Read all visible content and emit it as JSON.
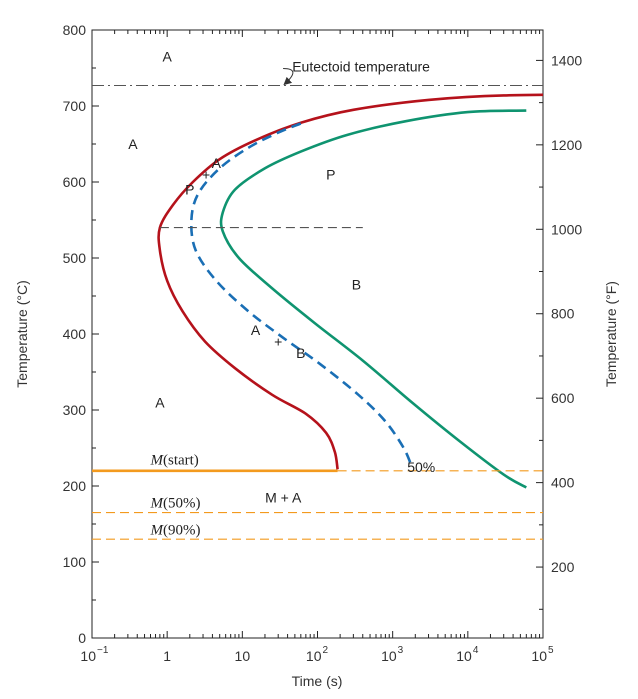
{
  "chart_data": {
    "type": "line",
    "title": "",
    "xlabel": "Time (s)",
    "ylabel": "Temperature (°C)",
    "y2label": "Temperature (°F)",
    "xscale": "log",
    "xlim": [
      0.1,
      100000
    ],
    "ylim": [
      0,
      800
    ],
    "y2lim": [
      32,
      1472
    ],
    "grid": false,
    "x_ticks": [
      {
        "value": 0.1,
        "base": "10",
        "exp": "−1"
      },
      {
        "value": 1,
        "base": "1",
        "exp": ""
      },
      {
        "value": 10,
        "base": "10",
        "exp": ""
      },
      {
        "value": 100,
        "base": "10",
        "exp": "2"
      },
      {
        "value": 1000,
        "base": "10",
        "exp": "3"
      },
      {
        "value": 10000,
        "base": "10",
        "exp": "4"
      },
      {
        "value": 100000,
        "base": "10",
        "exp": "5"
      }
    ],
    "y_ticks": [
      "0",
      "100",
      "200",
      "300",
      "400",
      "500",
      "600",
      "700",
      "800"
    ],
    "y2_ticks": [
      "200",
      "400",
      "600",
      "800",
      "1000",
      "1200",
      "1400"
    ],
    "series": [
      {
        "key": "start",
        "color": "#b5121b",
        "style": "solid",
        "points": [
          [
            1000000,
            715
          ],
          [
            30000,
            714
          ],
          [
            3000,
            708
          ],
          [
            300,
            695
          ],
          [
            60,
            678
          ],
          [
            15,
            655
          ],
          [
            5,
            630
          ],
          [
            2.2,
            600
          ],
          [
            1.2,
            570
          ],
          [
            0.8,
            540
          ],
          [
            0.8,
            510
          ],
          [
            1.0,
            470
          ],
          [
            1.6,
            430
          ],
          [
            3.2,
            390
          ],
          [
            8,
            355
          ],
          [
            25,
            320
          ],
          [
            70,
            295
          ],
          [
            130,
            270
          ],
          [
            170,
            245
          ],
          [
            185,
            222
          ]
        ]
      },
      {
        "key": "fifty",
        "color": "#1a6fb5",
        "style": "dashed",
        "points": [
          [
            60,
            677
          ],
          [
            30,
            665
          ],
          [
            12,
            645
          ],
          [
            5,
            618
          ],
          [
            2.6,
            585
          ],
          [
            2.1,
            550
          ],
          [
            2.4,
            510
          ],
          [
            4.5,
            470
          ],
          [
            12,
            430
          ],
          [
            35,
            395
          ],
          [
            110,
            360
          ],
          [
            350,
            320
          ],
          [
            800,
            285
          ],
          [
            1400,
            250
          ],
          [
            1800,
            225
          ]
        ]
      },
      {
        "key": "finish",
        "color": "#0f9470",
        "style": "solid",
        "points": [
          [
            60000,
            694
          ],
          [
            10000,
            692
          ],
          [
            1500,
            680
          ],
          [
            250,
            662
          ],
          [
            60,
            640
          ],
          [
            20,
            618
          ],
          [
            8,
            590
          ],
          [
            5.5,
            560
          ],
          [
            5.5,
            535
          ],
          [
            9,
            500
          ],
          [
            25,
            460
          ],
          [
            90,
            415
          ],
          [
            400,
            365
          ],
          [
            1800,
            310
          ],
          [
            8000,
            258
          ],
          [
            30000,
            215
          ],
          [
            60000,
            198
          ]
        ]
      },
      {
        "key": "eutectoid",
        "color": "#555555",
        "style": "dashdot",
        "points": [
          [
            0.1,
            727
          ],
          [
            100000,
            727
          ]
        ]
      },
      {
        "key": "nose",
        "color": "#555555",
        "style": "dashed",
        "points": [
          [
            0.8,
            540
          ],
          [
            400,
            540
          ]
        ]
      },
      {
        "key": "ms",
        "color": "#f39a1e",
        "style": "solid",
        "points": [
          [
            0.1,
            220
          ],
          [
            185,
            220
          ]
        ]
      },
      {
        "key": "ms_ext",
        "color": "#f39a1e",
        "style": "dashed",
        "points": [
          [
            185,
            220
          ],
          [
            100000,
            220
          ]
        ]
      },
      {
        "key": "m50",
        "color": "#f39a1e",
        "style": "dashed",
        "points": [
          [
            0.1,
            165
          ],
          [
            100000,
            165
          ]
        ]
      },
      {
        "key": "m90",
        "color": "#f39a1e",
        "style": "dashed",
        "points": [
          [
            0.1,
            130
          ],
          [
            100000,
            130
          ]
        ]
      }
    ],
    "region_labels": [
      {
        "text": "A",
        "x": 1.0,
        "y": 765
      },
      {
        "text": "A",
        "x": 0.35,
        "y": 650
      },
      {
        "text": "A",
        "x": 4.5,
        "y": 625
      },
      {
        "text": "+",
        "x": 3.3,
        "y": 610
      },
      {
        "text": "P",
        "x": 2.0,
        "y": 590
      },
      {
        "text": "P",
        "x": 150,
        "y": 610
      },
      {
        "text": "B",
        "x": 330,
        "y": 465
      },
      {
        "text": "A",
        "x": 15,
        "y": 405
      },
      {
        "text": "+",
        "x": 30,
        "y": 390
      },
      {
        "text": "B",
        "x": 60,
        "y": 375
      },
      {
        "text": "A",
        "x": 0.8,
        "y": 310
      },
      {
        "text": "M + A",
        "x": 35,
        "y": 185
      },
      {
        "text": "50%",
        "x": 2400,
        "y": 225
      }
    ],
    "annotations": {
      "eutectoid": {
        "text": "Eutectoid temperature",
        "x": 380,
        "y": 752,
        "arrow_to": [
          36,
          727
        ]
      },
      "m_start": {
        "italic": "M",
        "rest": "(start)",
        "x": 0.6,
        "y": 235
      },
      "m_50": {
        "italic": "M",
        "rest": "(50%)",
        "x": 0.6,
        "y": 178
      },
      "m_90": {
        "italic": "M",
        "rest": "(90%)",
        "x": 0.6,
        "y": 143
      }
    }
  }
}
